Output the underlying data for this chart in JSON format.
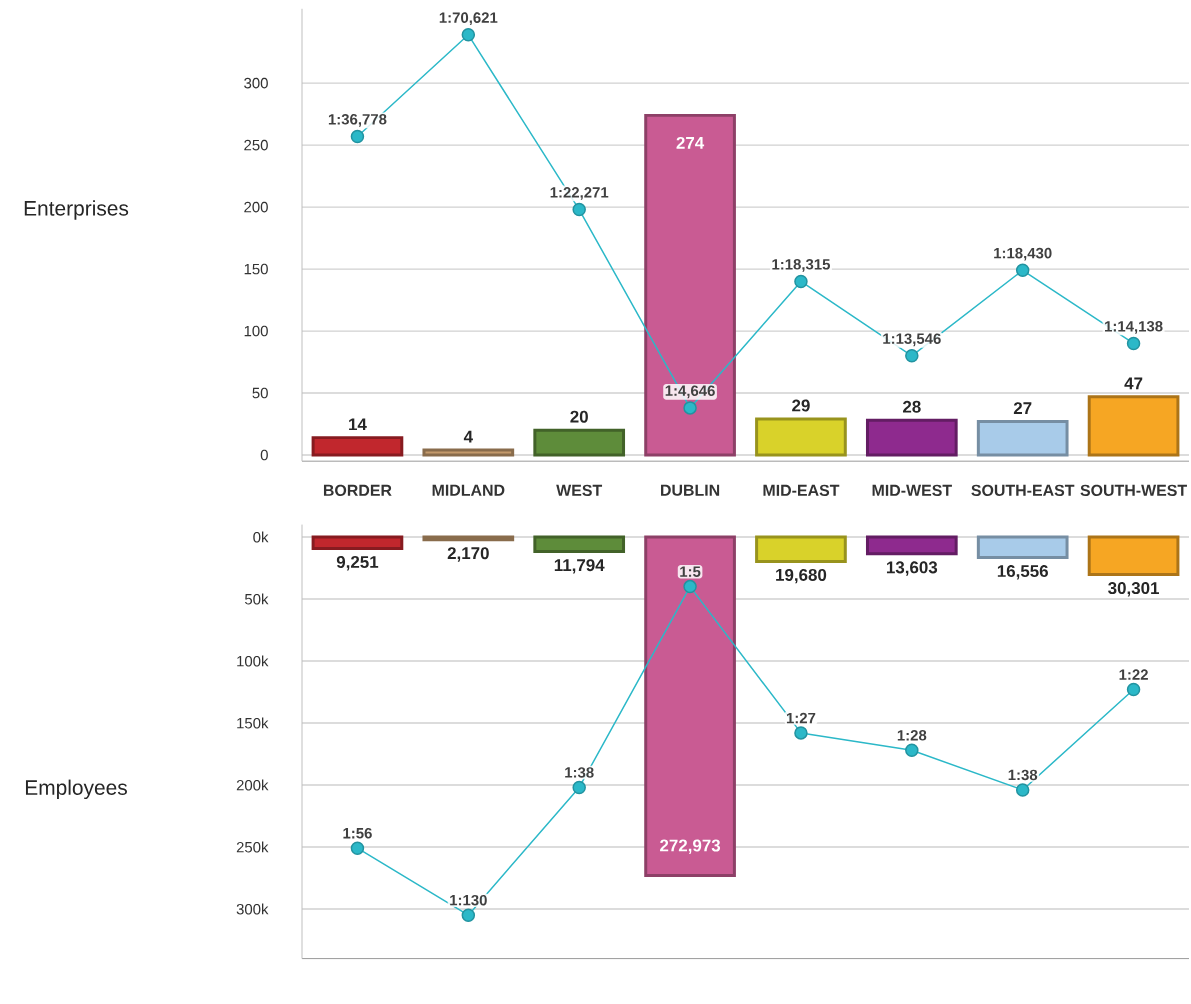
{
  "chart_data": [
    {
      "type": "bar",
      "ylabel": "Enterprises",
      "categories": [
        "BORDER",
        "MIDLAND",
        "WEST",
        "DUBLIN",
        "MID-EAST",
        "MID-WEST",
        "SOUTH-EAST",
        "SOUTH-WEST"
      ],
      "ylim": [
        -5,
        360
      ],
      "yticks": [
        0,
        50,
        100,
        150,
        200,
        250,
        300
      ],
      "grid": "y",
      "series": [
        {
          "colors": [
            "#c1272d",
            "#c49a6c",
            "#5e8c3a",
            "#c95b93",
            "#d9d22a",
            "#8e2a8e",
            "#a8cbe9",
            "#f6a623"
          ],
          "values": [
            14,
            4,
            20,
            274,
            29,
            28,
            27,
            47
          ],
          "value_labels": [
            "14",
            "4",
            "20",
            "274",
            "29",
            "28",
            "27",
            "47"
          ]
        },
        {
          "type": "line",
          "color": "#2bb8c8",
          "marker": "circle",
          "values": [
            257,
            339,
            198,
            38,
            140,
            80,
            149,
            90
          ]
        }
      ],
      "annotations": [
        {
          "text": "1:36,778",
          "x": "BORDER",
          "y": 257
        },
        {
          "text": "1:70,621",
          "x": "MIDLAND",
          "y": 339
        },
        {
          "text": "1:22,271",
          "x": "WEST",
          "y": 198
        },
        {
          "text": "1:4,646",
          "x": "DUBLIN",
          "y": 38
        },
        {
          "text": "1:18,315",
          "x": "MID-EAST",
          "y": 140
        },
        {
          "text": "1:13,546",
          "x": "MID-WEST",
          "y": 80
        },
        {
          "text": "1:18,430",
          "x": "SOUTH-EAST",
          "y": 149
        },
        {
          "text": "1:14,138",
          "x": "SOUTH-WEST",
          "y": 90
        }
      ]
    },
    {
      "type": "bar",
      "ylabel": "Employees",
      "categories": [
        "BORDER",
        "MIDLAND",
        "WEST",
        "DUBLIN",
        "MID-EAST",
        "MID-WEST",
        "SOUTH-EAST",
        "SOUTH-WEST"
      ],
      "ylim": [
        340000,
        -10000
      ],
      "yticks": [
        {
          "value": 0,
          "label": "0k"
        },
        {
          "value": 50000,
          "label": "50k"
        },
        {
          "value": 100000,
          "label": "100k"
        },
        {
          "value": 150000,
          "label": "150k"
        },
        {
          "value": 200000,
          "label": "200k"
        },
        {
          "value": 250000,
          "label": "250k"
        },
        {
          "value": 300000,
          "label": "300k"
        }
      ],
      "grid": "y",
      "tick_labels": "y",
      "series": [
        {
          "colors": [
            "#c1272d",
            "#c49a6c",
            "#5e8c3a",
            "#c95b93",
            "#d9d22a",
            "#8e2a8e",
            "#a8cbe9",
            "#f6a623"
          ],
          "values": [
            9251,
            2170,
            11794,
            272973,
            19680,
            13603,
            16556,
            30301
          ],
          "value_labels": [
            "9,251",
            "2,170",
            "11,794",
            "272,973",
            "19,680",
            "13,603",
            "16,556",
            "30,301"
          ]
        },
        {
          "type": "line",
          "color": "#2bb8c8",
          "marker": "circle",
          "values": [
            251000,
            305000,
            202000,
            40000,
            158000,
            172000,
            204000,
            123000
          ]
        }
      ],
      "annotations": [
        {
          "text": "1:56",
          "x": "BORDER",
          "y": 251000
        },
        {
          "text": "1:130",
          "x": "MIDLAND",
          "y": 305000
        },
        {
          "text": "1:38",
          "x": "WEST",
          "y": 202000
        },
        {
          "text": "1:5",
          "x": "DUBLIN",
          "y": 40000
        },
        {
          "text": "1:27",
          "x": "MID-EAST",
          "y": 158000
        },
        {
          "text": "1:28",
          "x": "MID-WEST",
          "y": 172000
        },
        {
          "text": "1:38",
          "x": "SOUTH-EAST",
          "y": 204000
        },
        {
          "text": "1:22",
          "x": "SOUTH-WEST",
          "y": 123000
        }
      ]
    }
  ]
}
